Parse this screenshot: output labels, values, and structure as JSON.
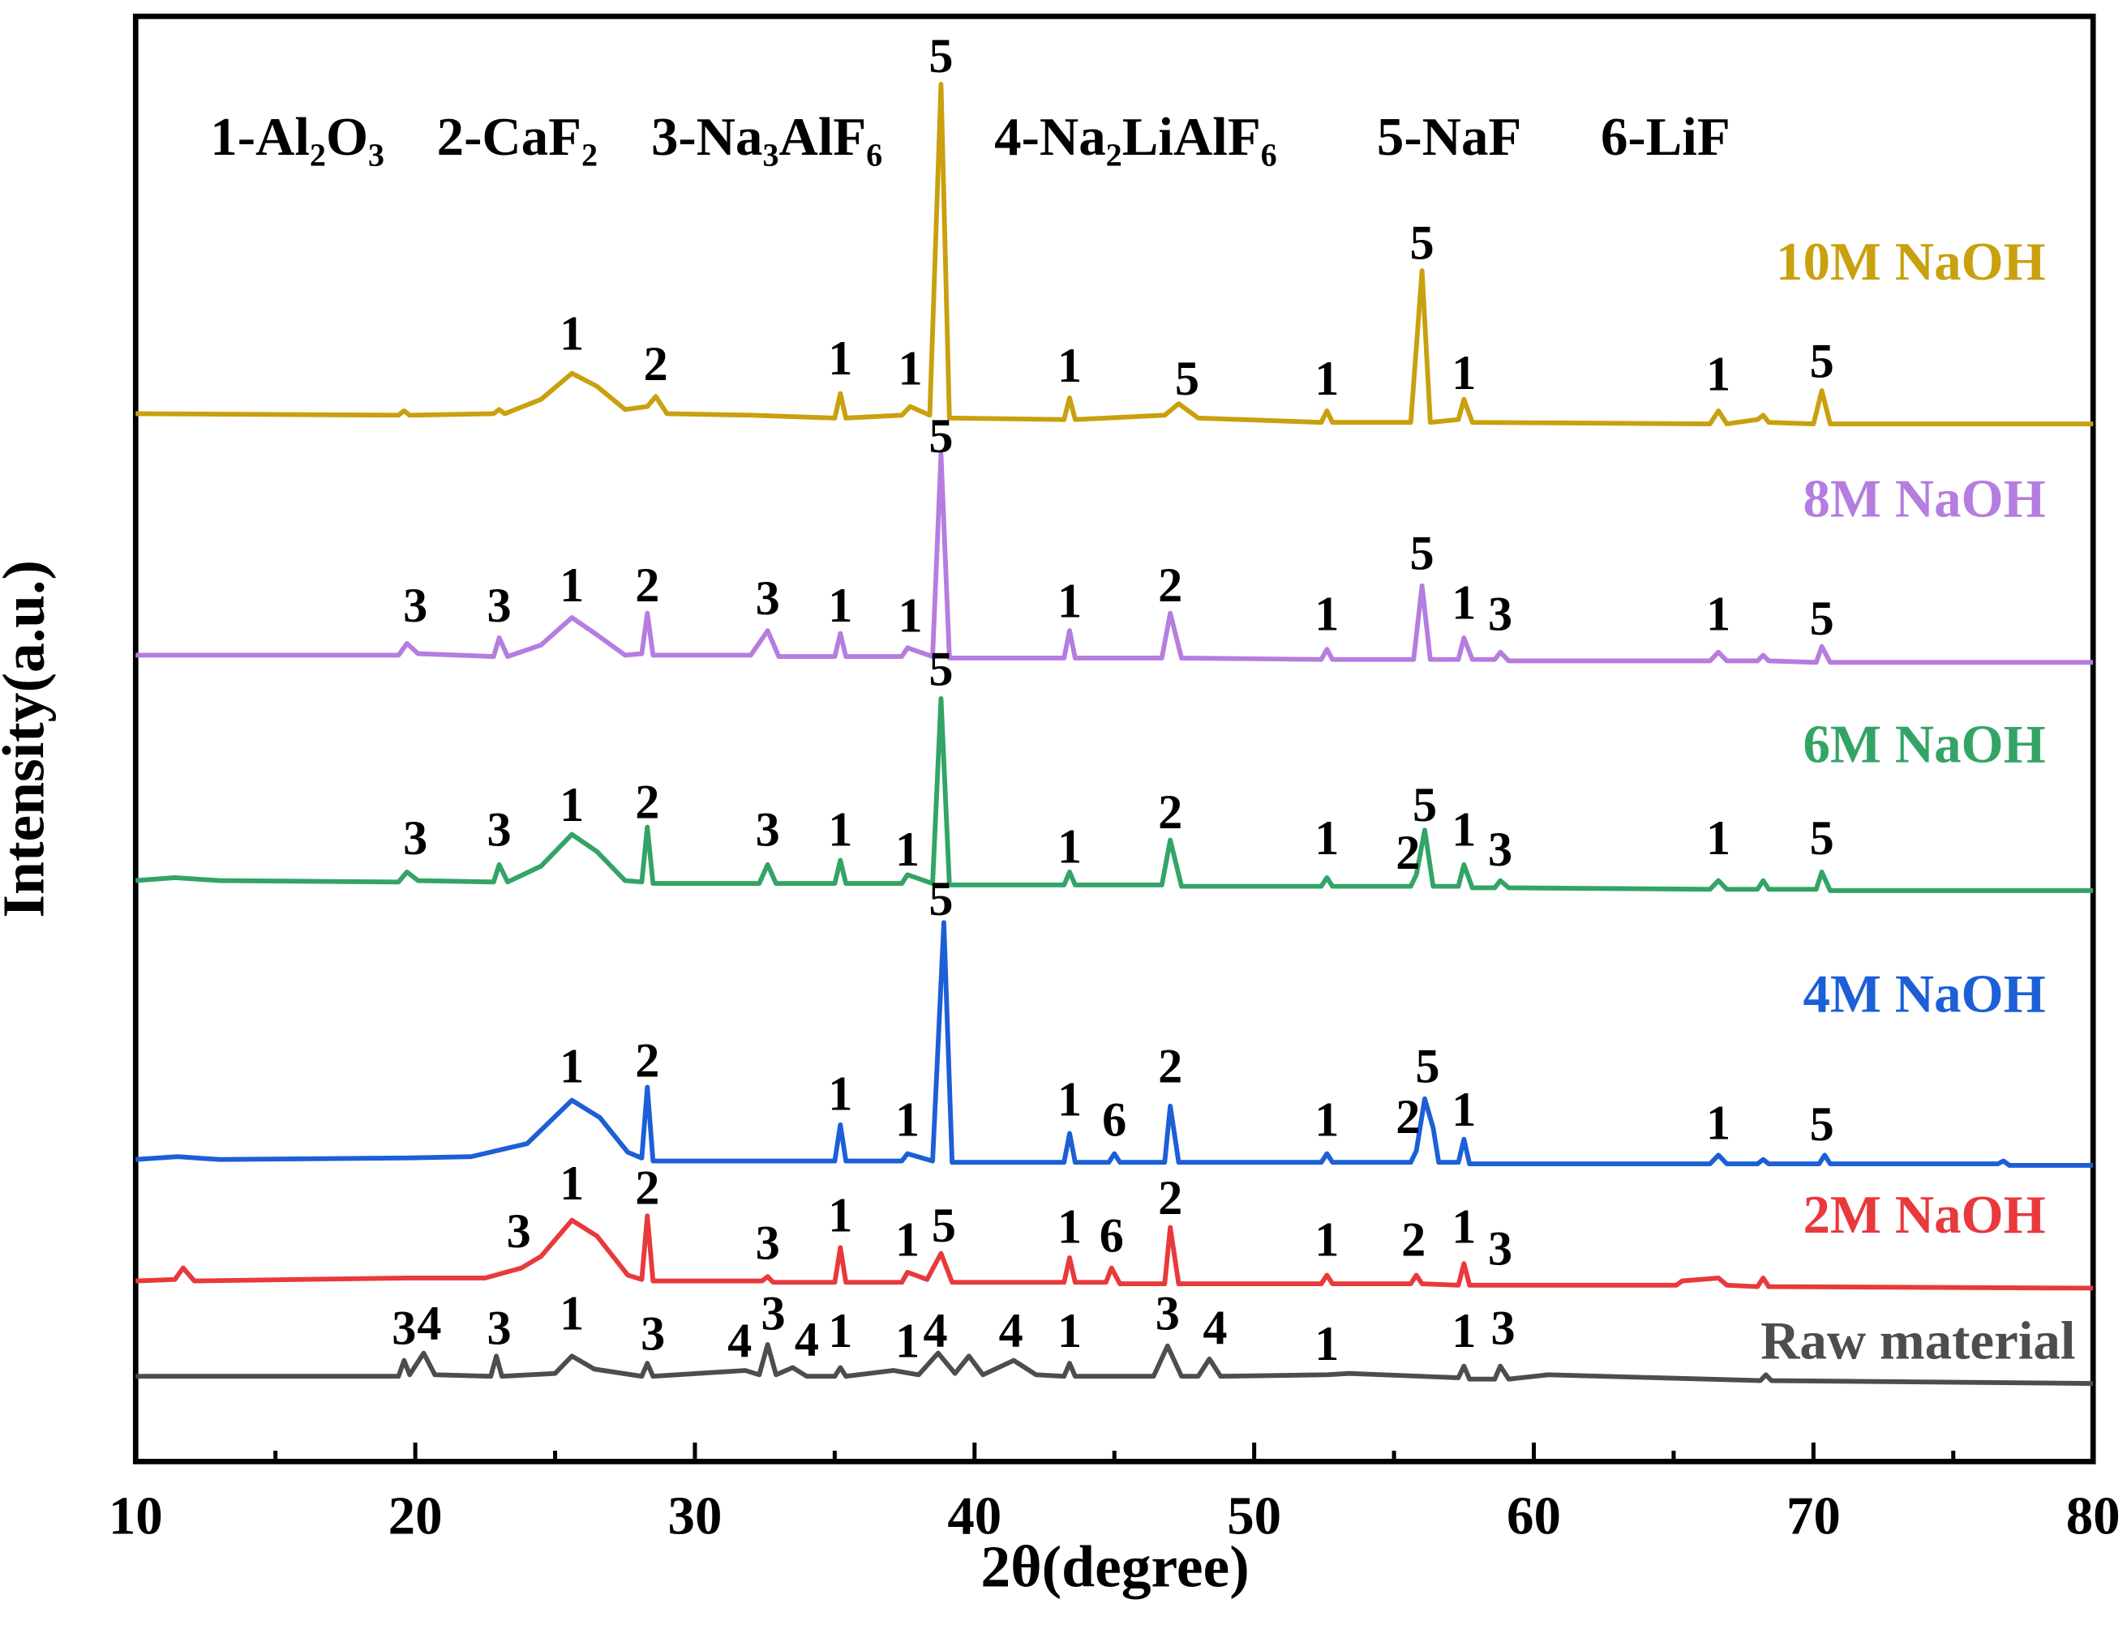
{
  "chart_data": {
    "type": "line",
    "xlabel": "2θ(degree)",
    "ylabel": "Intensity(a.u.)",
    "xlim": [
      10,
      80
    ],
    "xticks": [
      10,
      20,
      30,
      40,
      50,
      60,
      70,
      80
    ],
    "xminorticks": [
      15,
      25,
      35,
      45,
      55,
      65,
      75
    ],
    "ylim": [
      0,
      100
    ],
    "phase_key": [
      "1-Al₂O₃",
      "2-CaF₂",
      "3-Na₃AlF₆",
      "4-Na₂LiAlF₆",
      "5-NaF",
      "6-LiF"
    ],
    "series": [
      {
        "name": "10M NaOH",
        "color": "#c9a00e",
        "x": [
          10,
          19.4,
          19.6,
          19.8,
          22.8,
          23,
          23.2,
          24.5,
          25.6,
          26.5,
          27.5,
          28.3,
          28.6,
          29,
          32,
          35,
          35.2,
          35.4,
          37.4,
          37.7,
          38.4,
          38.8,
          39.1,
          43.2,
          43.4,
          43.6,
          46.8,
          47.3,
          48,
          52.4,
          52.6,
          52.8,
          55.6,
          56,
          56.3,
          57.3,
          57.5,
          57.8,
          66.3,
          66.6,
          66.9,
          68,
          68.2,
          68.4,
          70,
          70.3,
          70.6,
          80
        ],
        "values": [
          72.5,
          72.4,
          72.7,
          72.4,
          72.5,
          72.8,
          72.5,
          73.5,
          75.3,
          74.4,
          72.8,
          73.0,
          73.7,
          72.5,
          72.4,
          72.2,
          73.9,
          72.2,
          72.4,
          73.0,
          72.4,
          95.3,
          72.2,
          72.1,
          73.6,
          72.1,
          72.4,
          73.2,
          72.2,
          71.9,
          72.7,
          71.9,
          71.9,
          82.4,
          71.9,
          72.1,
          73.5,
          71.9,
          71.8,
          72.7,
          71.8,
          72.1,
          72.4,
          71.9,
          71.8,
          74.1,
          71.8,
          71.8
        ]
      },
      {
        "name": "8M NaOH",
        "color": "#b57ddf",
        "x": [
          10,
          19.4,
          19.7,
          20.1,
          22.8,
          23,
          23.3,
          24.5,
          25.6,
          26.5,
          27.5,
          28.1,
          28.3,
          28.5,
          32,
          32.6,
          33,
          35,
          35.2,
          35.4,
          37.4,
          37.6,
          38.5,
          38.8,
          39.1,
          43.2,
          43.4,
          43.6,
          46.7,
          47,
          47.4,
          52.4,
          52.6,
          52.8,
          55.7,
          56,
          56.3,
          57.3,
          57.5,
          57.8,
          58.6,
          58.8,
          59.1,
          66.3,
          66.6,
          66.9,
          68,
          68.2,
          68.4,
          70.1,
          70.3,
          70.6,
          80
        ],
        "values": [
          55.8,
          55.8,
          56.6,
          55.9,
          55.7,
          57.0,
          55.7,
          56.5,
          58.4,
          57.2,
          55.8,
          55.9,
          58.7,
          55.8,
          55.8,
          57.5,
          55.7,
          55.7,
          57.3,
          55.7,
          55.7,
          56.3,
          55.7,
          69.7,
          55.6,
          55.6,
          57.5,
          55.6,
          55.6,
          58.7,
          55.6,
          55.5,
          56.2,
          55.5,
          55.5,
          60.6,
          55.5,
          55.5,
          57.0,
          55.5,
          55.5,
          56.0,
          55.4,
          55.4,
          56.0,
          55.4,
          55.4,
          55.8,
          55.4,
          55.3,
          56.4,
          55.3,
          55.3
        ]
      },
      {
        "name": "6M NaOH",
        "color": "#33a466",
        "x": [
          10,
          11.4,
          13,
          19.4,
          19.7,
          20.1,
          22.8,
          23,
          23.3,
          24.5,
          25.6,
          26.5,
          27.5,
          28.1,
          28.3,
          28.5,
          32.3,
          32.6,
          32.9,
          35,
          35.2,
          35.4,
          37.4,
          37.6,
          38.5,
          38.8,
          39.1,
          43.2,
          43.4,
          43.6,
          46.7,
          47,
          47.4,
          52.4,
          52.6,
          52.8,
          55.6,
          55.8,
          56.1,
          56.4,
          57.3,
          57.5,
          57.8,
          58.6,
          58.8,
          59.1,
          66.3,
          66.6,
          66.9,
          68,
          68.2,
          68.4,
          70.1,
          70.3,
          70.6,
          80
        ],
        "values": [
          40.2,
          40.4,
          40.2,
          40.1,
          40.8,
          40.2,
          40.1,
          41.3,
          40.1,
          41.2,
          43.4,
          42.2,
          40.2,
          40.1,
          43.9,
          40.0,
          40.0,
          41.3,
          40.0,
          40.0,
          41.6,
          40.0,
          40.0,
          40.6,
          40.0,
          52.8,
          39.9,
          39.9,
          40.8,
          39.9,
          39.9,
          43.0,
          39.8,
          39.8,
          40.4,
          39.8,
          39.8,
          40.6,
          43.7,
          39.8,
          39.8,
          41.3,
          39.7,
          39.7,
          40.2,
          39.7,
          39.6,
          40.2,
          39.6,
          39.6,
          40.2,
          39.6,
          39.6,
          40.8,
          39.5,
          39.5
        ]
      },
      {
        "name": "4M NaOH",
        "color": "#1c5fd6",
        "x": [
          10,
          11.5,
          13,
          19.6,
          22,
          24,
          25.6,
          26.6,
          27.6,
          28.1,
          28.3,
          28.5,
          35,
          35.2,
          35.4,
          37.4,
          37.6,
          38.5,
          38.9,
          39.2,
          43.2,
          43.4,
          43.6,
          44.8,
          45,
          45.2,
          46.8,
          47,
          47.3,
          52.4,
          52.6,
          52.8,
          55.6,
          55.8,
          56.1,
          56.4,
          56.6,
          57.3,
          57.5,
          57.7,
          66.3,
          66.6,
          66.9,
          68,
          68.2,
          68.4,
          70.2,
          70.4,
          70.6,
          76.6,
          76.8,
          77,
          80
        ],
        "values": [
          20.9,
          21.1,
          20.9,
          21.0,
          21.1,
          22.0,
          25.0,
          23.8,
          21.4,
          21.0,
          25.9,
          20.8,
          20.8,
          23.3,
          20.8,
          20.8,
          21.3,
          20.8,
          37.3,
          20.7,
          20.7,
          22.7,
          20.7,
          20.7,
          21.3,
          20.7,
          20.7,
          24.6,
          20.7,
          20.7,
          21.3,
          20.7,
          20.7,
          21.5,
          25.1,
          23.1,
          20.7,
          20.7,
          22.3,
          20.6,
          20.6,
          21.2,
          20.6,
          20.6,
          20.9,
          20.6,
          20.6,
          21.2,
          20.6,
          20.6,
          20.8,
          20.5,
          20.5
        ]
      },
      {
        "name": "2M NaOH",
        "color": "#e8393c",
        "x": [
          10,
          11.4,
          11.7,
          12.1,
          19.7,
          22.5,
          23.8,
          24.5,
          25.6,
          26.5,
          27.6,
          28.1,
          28.3,
          28.5,
          32.4,
          32.6,
          32.8,
          35,
          35.2,
          35.4,
          37.4,
          37.6,
          38.3,
          38.8,
          39.2,
          43.2,
          43.4,
          43.6,
          44.7,
          44.9,
          45.2,
          46.8,
          47,
          47.3,
          52.4,
          52.6,
          52.8,
          55.6,
          55.8,
          56,
          57.3,
          57.5,
          57.7,
          65.1,
          65.3,
          66.6,
          66.9,
          68,
          68.2,
          68.4,
          80
        ],
        "values": [
          12.5,
          12.6,
          13.4,
          12.5,
          12.7,
          12.7,
          13.4,
          14.2,
          16.7,
          15.6,
          12.9,
          12.6,
          17.0,
          12.5,
          12.5,
          12.8,
          12.4,
          12.4,
          14.8,
          12.4,
          12.4,
          13.1,
          12.6,
          14.4,
          12.4,
          12.4,
          14.1,
          12.4,
          12.4,
          13.4,
          12.3,
          12.3,
          16.2,
          12.3,
          12.3,
          12.9,
          12.3,
          12.3,
          12.9,
          12.3,
          12.2,
          13.7,
          12.2,
          12.2,
          12.5,
          12.7,
          12.2,
          12.1,
          12.7,
          12.1,
          12.0
        ]
      },
      {
        "name": "Raw material",
        "color": "#4d4d4d",
        "x": [
          10,
          19.4,
          19.6,
          19.8,
          20.3,
          20.7,
          22.7,
          22.9,
          23.1,
          25,
          25.6,
          26.4,
          28.1,
          28.3,
          28.5,
          31.8,
          32.3,
          32.6,
          32.9,
          33.5,
          34,
          35,
          35.2,
          35.4,
          37.1,
          38,
          38.7,
          39.3,
          39.8,
          40.3,
          41.4,
          42.2,
          43.2,
          43.4,
          43.6,
          46.4,
          46.9,
          47.4,
          48,
          48.4,
          48.8,
          52.6,
          53.4,
          57.3,
          57.5,
          57.7,
          58.6,
          58.8,
          59.1,
          60.5,
          68.1,
          68.3,
          68.5,
          80
        ],
        "values": [
          5.9,
          5.9,
          7.0,
          6.0,
          7.5,
          6.0,
          5.9,
          7.3,
          5.9,
          6.1,
          7.3,
          6.4,
          5.9,
          6.8,
          5.9,
          6.3,
          6.0,
          8.1,
          6.0,
          6.5,
          5.9,
          5.9,
          6.5,
          5.9,
          6.3,
          6.0,
          7.5,
          6.1,
          7.3,
          6.0,
          7.0,
          6.0,
          5.9,
          6.8,
          5.9,
          5.9,
          8.0,
          5.9,
          5.9,
          7.1,
          5.9,
          6.0,
          6.1,
          5.8,
          6.6,
          5.7,
          5.7,
          6.6,
          5.7,
          6.0,
          5.6,
          6.0,
          5.6,
          5.4
        ]
      }
    ],
    "annotations": [
      {
        "text": "1",
        "x": 25.6,
        "y": 77.7
      },
      {
        "text": "2",
        "x": 28.6,
        "y": 75.6
      },
      {
        "text": "1",
        "x": 35.2,
        "y": 76.0
      },
      {
        "text": "1",
        "x": 37.7,
        "y": 75.3
      },
      {
        "text": "5",
        "x": 38.8,
        "y": 96.9
      },
      {
        "text": "1",
        "x": 43.4,
        "y": 75.5
      },
      {
        "text": "5",
        "x": 47.6,
        "y": 74.6
      },
      {
        "text": "1",
        "x": 52.6,
        "y": 74.6
      },
      {
        "text": "5",
        "x": 56.0,
        "y": 84.0
      },
      {
        "text": "1",
        "x": 57.5,
        "y": 75.0
      },
      {
        "text": "1",
        "x": 66.6,
        "y": 74.9
      },
      {
        "text": "5",
        "x": 70.3,
        "y": 75.8
      },
      {
        "text": "3",
        "x": 20.0,
        "y": 58.9
      },
      {
        "text": "3",
        "x": 23.0,
        "y": 58.9
      },
      {
        "text": "1",
        "x": 25.6,
        "y": 60.3
      },
      {
        "text": "2",
        "x": 28.3,
        "y": 60.3
      },
      {
        "text": "3",
        "x": 32.6,
        "y": 59.4
      },
      {
        "text": "1",
        "x": 35.2,
        "y": 58.9
      },
      {
        "text": "1",
        "x": 37.7,
        "y": 58.2
      },
      {
        "text": "5",
        "x": 38.8,
        "y": 70.6
      },
      {
        "text": "1",
        "x": 43.4,
        "y": 59.2
      },
      {
        "text": "2",
        "x": 47.0,
        "y": 60.3
      },
      {
        "text": "1",
        "x": 52.6,
        "y": 58.3
      },
      {
        "text": "5",
        "x": 56.0,
        "y": 62.5
      },
      {
        "text": "1",
        "x": 57.5,
        "y": 59.1
      },
      {
        "text": "3",
        "x": 58.8,
        "y": 58.3
      },
      {
        "text": "1",
        "x": 66.6,
        "y": 58.3
      },
      {
        "text": "5",
        "x": 70.3,
        "y": 58.0
      },
      {
        "text": "3",
        "x": 20.0,
        "y": 42.8
      },
      {
        "text": "3",
        "x": 23.0,
        "y": 43.4
      },
      {
        "text": "1",
        "x": 25.6,
        "y": 45.1
      },
      {
        "text": "2",
        "x": 28.3,
        "y": 45.3
      },
      {
        "text": "3",
        "x": 32.6,
        "y": 43.4
      },
      {
        "text": "1",
        "x": 35.2,
        "y": 43.4
      },
      {
        "text": "1",
        "x": 37.6,
        "y": 42.0
      },
      {
        "text": "5",
        "x": 38.8,
        "y": 54.5
      },
      {
        "text": "1",
        "x": 43.4,
        "y": 42.2
      },
      {
        "text": "2",
        "x": 47.0,
        "y": 44.6
      },
      {
        "text": "1",
        "x": 52.6,
        "y": 42.8
      },
      {
        "text": "2",
        "x": 55.5,
        "y": 41.8
      },
      {
        "text": "5",
        "x": 56.1,
        "y": 45.1
      },
      {
        "text": "1",
        "x": 57.5,
        "y": 43.4
      },
      {
        "text": "3",
        "x": 58.8,
        "y": 42.0
      },
      {
        "text": "1",
        "x": 66.6,
        "y": 42.8
      },
      {
        "text": "5",
        "x": 70.3,
        "y": 42.8
      },
      {
        "text": "5",
        "x": 38.8,
        "y": 38.6
      },
      {
        "text": "1",
        "x": 25.6,
        "y": 27.0
      },
      {
        "text": "2",
        "x": 28.3,
        "y": 27.4
      },
      {
        "text": "1",
        "x": 35.2,
        "y": 25.1
      },
      {
        "text": "1",
        "x": 37.6,
        "y": 23.3
      },
      {
        "text": "1",
        "x": 43.4,
        "y": 24.7
      },
      {
        "text": "6",
        "x": 45.0,
        "y": 23.3
      },
      {
        "text": "2",
        "x": 47.0,
        "y": 27.0
      },
      {
        "text": "1",
        "x": 52.6,
        "y": 23.3
      },
      {
        "text": "2",
        "x": 55.5,
        "y": 23.5
      },
      {
        "text": "5",
        "x": 56.2,
        "y": 27.0
      },
      {
        "text": "1",
        "x": 57.5,
        "y": 24.0
      },
      {
        "text": "1",
        "x": 66.6,
        "y": 23.1
      },
      {
        "text": "5",
        "x": 70.3,
        "y": 23.0
      },
      {
        "text": "3",
        "x": 23.7,
        "y": 15.6
      },
      {
        "text": "1",
        "x": 25.6,
        "y": 18.9
      },
      {
        "text": "2",
        "x": 28.3,
        "y": 18.6
      },
      {
        "text": "3",
        "x": 32.6,
        "y": 14.8
      },
      {
        "text": "1",
        "x": 35.2,
        "y": 16.7
      },
      {
        "text": "1",
        "x": 37.6,
        "y": 15.0
      },
      {
        "text": "5",
        "x": 38.9,
        "y": 16.0
      },
      {
        "text": "1",
        "x": 43.4,
        "y": 15.9
      },
      {
        "text": "6",
        "x": 44.9,
        "y": 15.3
      },
      {
        "text": "2",
        "x": 47.0,
        "y": 17.9
      },
      {
        "text": "1",
        "x": 52.6,
        "y": 15.0
      },
      {
        "text": "2",
        "x": 55.7,
        "y": 15.0
      },
      {
        "text": "1",
        "x": 57.5,
        "y": 15.9
      },
      {
        "text": "3",
        "x": 58.8,
        "y": 14.4
      },
      {
        "text": "3",
        "x": 19.6,
        "y": 8.9
      },
      {
        "text": "4",
        "x": 20.5,
        "y": 9.2
      },
      {
        "text": "3",
        "x": 23.0,
        "y": 8.9
      },
      {
        "text": "1",
        "x": 25.6,
        "y": 9.9
      },
      {
        "text": "3",
        "x": 28.5,
        "y": 8.5
      },
      {
        "text": "4",
        "x": 31.6,
        "y": 8.0
      },
      {
        "text": "3",
        "x": 32.8,
        "y": 9.9
      },
      {
        "text": "4",
        "x": 34.0,
        "y": 8.1
      },
      {
        "text": "1",
        "x": 35.2,
        "y": 8.7
      },
      {
        "text": "1",
        "x": 37.6,
        "y": 8.0
      },
      {
        "text": "4",
        "x": 38.6,
        "y": 8.7
      },
      {
        "text": "4",
        "x": 41.3,
        "y": 8.7
      },
      {
        "text": "1",
        "x": 43.4,
        "y": 8.7
      },
      {
        "text": "3",
        "x": 46.9,
        "y": 9.9
      },
      {
        "text": "4",
        "x": 48.6,
        "y": 8.9
      },
      {
        "text": "1",
        "x": 52.6,
        "y": 7.8
      },
      {
        "text": "1",
        "x": 57.5,
        "y": 8.7
      },
      {
        "text": "3",
        "x": 58.9,
        "y": 8.9
      }
    ]
  }
}
